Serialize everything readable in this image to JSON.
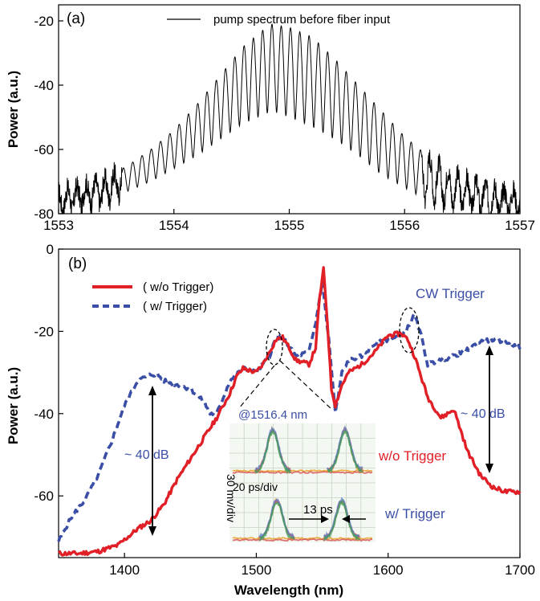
{
  "colors": {
    "pump": "#000000",
    "without_trigger": "#e01f26",
    "with_trigger": "#3a4ea6",
    "annotation_blue": "#3a4ea6",
    "annotation_red": "#e01f26"
  },
  "chart_data": [
    {
      "panel_label": "(a)",
      "type": "line",
      "xlabel": "",
      "ylabel": "Power (a.u.)",
      "xlim": [
        1553,
        1557
      ],
      "ylim": [
        -80,
        -15
      ],
      "xticks": [
        "1553",
        "1554",
        "1555",
        "1556",
        "1557"
      ],
      "yticks": [
        "-20",
        "-40",
        "-60",
        "-80"
      ],
      "legend": "top-center",
      "series": [
        {
          "name": "pump spectrum before fiber input",
          "style": "black solid, fringes spaced ~0.08 nm under a Gaussian envelope",
          "envelope_center": 1554.85,
          "peak": -21,
          "x": [
            1553.0,
            1553.2,
            1553.4,
            1553.6,
            1553.8,
            1554.0,
            1554.2,
            1554.4,
            1554.6,
            1554.8,
            1554.85,
            1555.0,
            1555.2,
            1555.4,
            1555.6,
            1555.8,
            1556.0,
            1556.2,
            1556.4,
            1556.6,
            1556.8,
            1557.0
          ],
          "y_upper": [
            -73,
            -71,
            -69,
            -65,
            -60,
            -54,
            -46,
            -37,
            -28,
            -22,
            -21,
            -22,
            -25,
            -32,
            -40,
            -48,
            -56,
            -62,
            -67,
            -70,
            -72,
            -73
          ],
          "y_lower": [
            -80,
            -78,
            -77,
            -73,
            -70,
            -66,
            -62,
            -57,
            -52,
            -49,
            -48,
            -50,
            -53,
            -57,
            -62,
            -68,
            -72,
            -76,
            -78,
            -79,
            -80,
            -80
          ]
        }
      ]
    },
    {
      "panel_label": "(b)",
      "type": "line",
      "xlabel": "Wavelength (nm)",
      "ylabel": "Power (a.u.)",
      "xlim": [
        1350,
        1700
      ],
      "ylim": [
        -75,
        0
      ],
      "xticks": [
        "1400",
        "1500",
        "1600",
        "1700"
      ],
      "yticks": [
        "0",
        "-20",
        "-40",
        "-60"
      ],
      "legend": "top-left",
      "series": [
        {
          "name": "( w/o Trigger)",
          "style": "red solid, thick",
          "x": [
            1350,
            1365,
            1380,
            1395,
            1410,
            1420,
            1430,
            1440,
            1450,
            1460,
            1470,
            1480,
            1485,
            1490,
            1500,
            1505,
            1510,
            1515,
            1520,
            1525,
            1530,
            1540,
            1545,
            1548,
            1551,
            1554,
            1557,
            1560,
            1562,
            1565,
            1570,
            1580,
            1590,
            1600,
            1610,
            1615,
            1620,
            1625,
            1630,
            1640,
            1645,
            1650,
            1655,
            1660,
            1670,
            1680,
            1690,
            1700
          ],
          "y": [
            -74,
            -74,
            -73.5,
            -72,
            -68,
            -66,
            -62,
            -56,
            -51,
            -46,
            -41,
            -35,
            -31,
            -29,
            -30,
            -28,
            -25,
            -22,
            -21.5,
            -24,
            -27,
            -28,
            -24,
            -12,
            -5,
            -18,
            -34,
            -38,
            -36,
            -33,
            -30,
            -28,
            -25,
            -21,
            -20.5,
            -22,
            -26,
            -31,
            -36,
            -41,
            -40,
            -39,
            -44,
            -49,
            -55,
            -58,
            -59,
            -59
          ]
        },
        {
          "name": "( w/ Trigger)",
          "style": "blue dashed, thick",
          "x": [
            1350,
            1360,
            1370,
            1380,
            1390,
            1400,
            1410,
            1420,
            1425,
            1430,
            1440,
            1450,
            1460,
            1465,
            1470,
            1480,
            1490,
            1500,
            1510,
            1515,
            1520,
            1530,
            1540,
            1545,
            1550,
            1555,
            1560,
            1565,
            1570,
            1580,
            1590,
            1600,
            1610,
            1615,
            1620,
            1625,
            1630,
            1640,
            1650,
            1660,
            1670,
            1680,
            1690,
            1700
          ],
          "y": [
            -71,
            -65,
            -61,
            -55,
            -47,
            -38,
            -32,
            -30.5,
            -30.5,
            -32,
            -33,
            -34,
            -37,
            -40,
            -40,
            -32,
            -29,
            -30,
            -26,
            -21.5,
            -21.5,
            -26,
            -25,
            -18,
            -8,
            -22,
            -40,
            -30,
            -27,
            -26,
            -23,
            -22,
            -21,
            -19,
            -16,
            -21,
            -28,
            -27,
            -26,
            -24.5,
            -22.5,
            -22,
            -22.5,
            -24
          ]
        }
      ],
      "annotations": {
        "cw_trigger": "CW Trigger",
        "gap_left": "~ 40 dB",
        "gap_right": "~ 40 dB"
      },
      "inset": {
        "title": "@1516.4 nm",
        "ylabel": "30 mv/div",
        "xscale_label": "20 ps/div",
        "label_without": "w/o Trigger",
        "label_with": "w/ Trigger",
        "separation_label": "13 ps"
      }
    }
  ]
}
